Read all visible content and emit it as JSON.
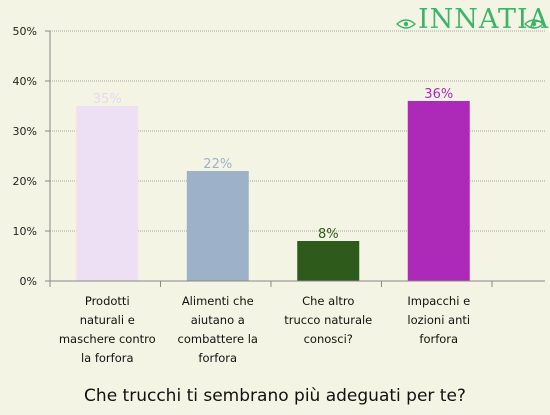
{
  "logo": {
    "text": "INNATIA"
  },
  "colors": {
    "axis": "#888888",
    "grid": "#555555",
    "background": "#f4f4e4"
  },
  "chart_data": {
    "type": "bar",
    "title": "Che trucchi ti sembrano più adeguati per te?",
    "categories": [
      "Prodotti naturali e maschere contro la forfora",
      "Alimenti che aiutano a combattere la forfora",
      "Che altro trucco naturale conosci?",
      "Impacchi e lozioni anti forfora"
    ],
    "category_lines": [
      [
        "Prodotti",
        "naturali e",
        "maschere contro",
        "la forfora"
      ],
      [
        "Alimenti che",
        "aiutano a",
        "combattere la",
        "forfora"
      ],
      [
        "Che altro",
        "trucco naturale",
        "conosci?"
      ],
      [
        "Impacchi e",
        "lozioni anti",
        "forfora"
      ]
    ],
    "values": [
      35,
      22,
      8,
      36
    ],
    "value_labels": [
      "35%",
      "22%",
      "8%",
      "36%"
    ],
    "bar_colors": [
      "#eee0f4",
      "#9db1c9",
      "#2e5a1c",
      "#ad29b8"
    ],
    "label_colors": [
      "#e8d8f0",
      "#9db1c9",
      "#2e5a1c",
      "#ad29b8"
    ],
    "ylim": [
      0,
      50
    ],
    "yticks": [
      0,
      10,
      20,
      30,
      40,
      50
    ],
    "ytick_labels": [
      "0%",
      "10%",
      "20%",
      "30%",
      "40%",
      "50%"
    ],
    "grid": true,
    "xlabel": "",
    "ylabel": ""
  }
}
